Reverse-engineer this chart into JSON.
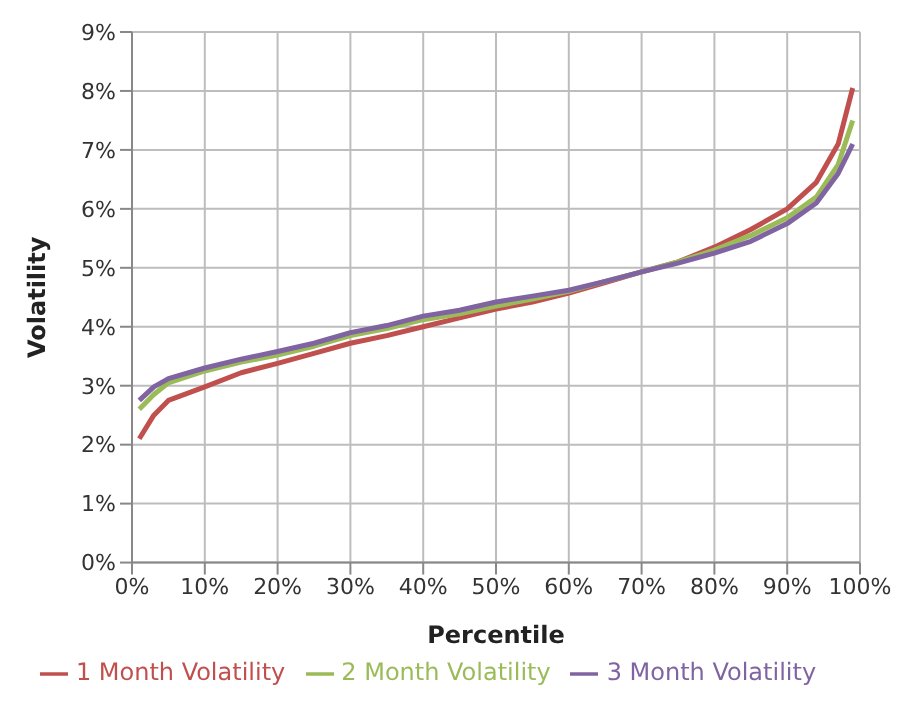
{
  "chart_data": {
    "type": "line",
    "xlabel": "Percentile",
    "ylabel": "Volatility",
    "x": [
      1,
      3,
      5,
      10,
      15,
      20,
      25,
      30,
      35,
      40,
      45,
      50,
      55,
      60,
      65,
      70,
      75,
      80,
      85,
      90,
      94,
      97,
      99
    ],
    "series": [
      {
        "name": "1 Month Volatility",
        "color": "#c0504d",
        "values": [
          2.1,
          2.5,
          2.75,
          2.98,
          3.22,
          3.38,
          3.55,
          3.72,
          3.85,
          4.0,
          4.15,
          4.3,
          4.42,
          4.57,
          4.75,
          4.93,
          5.1,
          5.35,
          5.65,
          6.0,
          6.45,
          7.1,
          8.05
        ]
      },
      {
        "name": "2 Month Volatility",
        "color": "#9bbb59",
        "values": [
          2.6,
          2.85,
          3.05,
          3.25,
          3.4,
          3.52,
          3.67,
          3.85,
          3.97,
          4.12,
          4.22,
          4.35,
          4.47,
          4.6,
          4.77,
          4.93,
          5.1,
          5.3,
          5.55,
          5.85,
          6.2,
          6.75,
          7.5
        ]
      },
      {
        "name": "3 Month Volatility",
        "color": "#8064a2",
        "values": [
          2.75,
          2.98,
          3.12,
          3.3,
          3.45,
          3.58,
          3.72,
          3.9,
          4.02,
          4.18,
          4.28,
          4.42,
          4.52,
          4.62,
          4.77,
          4.93,
          5.08,
          5.25,
          5.45,
          5.75,
          6.1,
          6.6,
          7.1
        ]
      }
    ],
    "xlim": [
      0,
      100
    ],
    "xticks": [
      {
        "value": 0,
        "label": "0%"
      },
      {
        "value": 10,
        "label": "10%"
      },
      {
        "value": 20,
        "label": "20%"
      },
      {
        "value": 30,
        "label": "30%"
      },
      {
        "value": 40,
        "label": "40%"
      },
      {
        "value": 50,
        "label": "50%"
      },
      {
        "value": 60,
        "label": "60%"
      },
      {
        "value": 70,
        "label": "70%"
      },
      {
        "value": 80,
        "label": "80%"
      },
      {
        "value": 90,
        "label": "90%"
      },
      {
        "value": 100,
        "label": "100%"
      }
    ],
    "ylim": [
      0,
      9
    ],
    "yticks": [
      {
        "value": 0,
        "label": "0%"
      },
      {
        "value": 1,
        "label": "1%"
      },
      {
        "value": 2,
        "label": "2%"
      },
      {
        "value": 3,
        "label": "3%"
      },
      {
        "value": 4,
        "label": "4%"
      },
      {
        "value": 5,
        "label": "5%"
      },
      {
        "value": 6,
        "label": "6%"
      },
      {
        "value": 7,
        "label": "7%"
      },
      {
        "value": 8,
        "label": "8%"
      },
      {
        "value": 9,
        "label": "9%"
      }
    ],
    "grid": true,
    "legend": "bottom",
    "marker": "none",
    "line_style": "solid"
  }
}
